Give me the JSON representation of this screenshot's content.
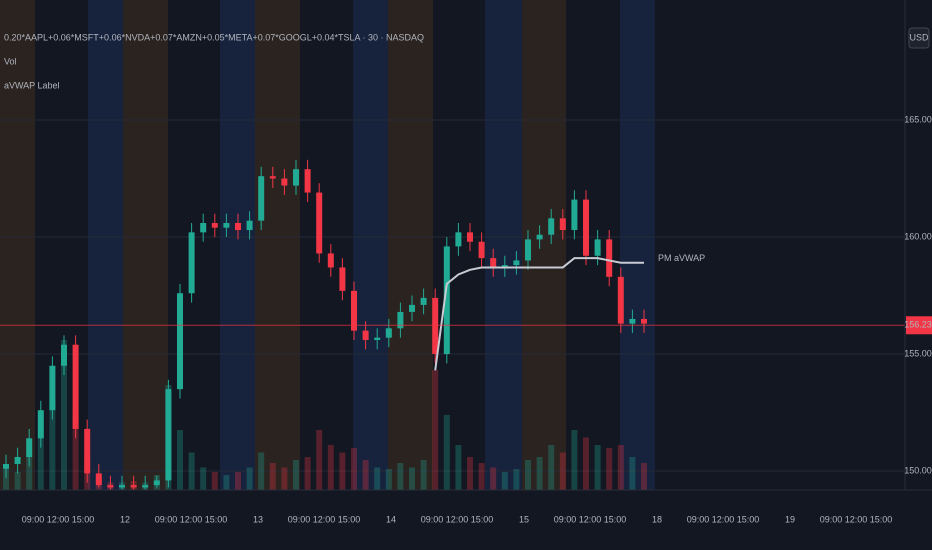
{
  "chart_data": {
    "type": "candlestick",
    "title": "0.20*AAPL+0.06*MSFT+0.06*NVDA+0.07*AMZN+0.05*META+0.07*GOOGL+0.04*TSLA · 30 · NASDAQ",
    "indicators": [
      "Vol",
      "aVWAP Label"
    ],
    "currency": "USD",
    "up_color": "#22ab94",
    "down_color": "#f23645",
    "open": [
      150.1,
      150.3,
      150.6,
      151.4,
      152.6,
      154.5,
      155.4,
      151.8,
      149.9,
      149.4,
      149.3,
      149.4,
      149.3,
      149.4,
      149.6,
      153.5,
      157.6,
      160.2,
      160.6,
      160.4,
      160.6,
      160.3,
      160.7,
      162.6,
      162.5,
      162.2,
      162.9,
      161.9,
      159.3,
      158.7,
      157.7,
      156.0,
      155.6,
      155.7,
      156.1,
      156.8,
      157.1,
      157.4,
      155.0,
      159.6,
      160.2,
      159.8,
      159.1,
      158.7,
      158.8,
      159.0,
      159.9,
      160.1,
      160.8,
      160.3,
      161.6,
      159.2,
      159.9,
      158.3,
      156.3,
      156.5
    ],
    "high": [
      150.7,
      151.0,
      151.8,
      153.0,
      154.9,
      155.8,
      155.8,
      152.2,
      150.3,
      149.8,
      149.8,
      149.8,
      149.8,
      149.8,
      153.9,
      158.0,
      160.6,
      161.0,
      161.0,
      161.0,
      161.0,
      161.1,
      163.0,
      163.0,
      162.9,
      163.3,
      163.3,
      162.3,
      159.7,
      159.1,
      158.1,
      156.4,
      156.1,
      156.5,
      157.2,
      157.5,
      157.8,
      157.8,
      160.0,
      160.6,
      160.6,
      160.2,
      159.5,
      159.2,
      159.4,
      160.3,
      160.5,
      161.2,
      161.2,
      162.0,
      162.0,
      160.3,
      160.3,
      158.7,
      156.9,
      156.9
    ],
    "low": [
      149.7,
      149.9,
      150.2,
      151.0,
      152.2,
      154.1,
      151.4,
      149.5,
      149.3,
      149.2,
      149.2,
      149.2,
      149.2,
      149.3,
      149.3,
      153.1,
      157.2,
      159.8,
      160.0,
      160.0,
      159.9,
      159.9,
      160.3,
      162.1,
      161.8,
      161.8,
      161.5,
      158.9,
      158.3,
      157.3,
      155.6,
      155.2,
      155.2,
      155.3,
      155.7,
      156.4,
      156.7,
      154.6,
      154.6,
      159.2,
      159.4,
      158.7,
      158.3,
      158.3,
      158.4,
      158.6,
      159.5,
      159.7,
      159.9,
      159.9,
      158.8,
      158.8,
      157.9,
      155.9,
      155.9,
      155.9
    ],
    "close": [
      150.3,
      150.6,
      151.4,
      152.6,
      154.5,
      155.4,
      151.8,
      149.9,
      149.4,
      149.3,
      149.4,
      149.3,
      149.4,
      149.6,
      153.5,
      157.6,
      160.2,
      160.6,
      160.4,
      160.6,
      160.3,
      160.7,
      162.6,
      162.5,
      162.2,
      162.9,
      161.9,
      159.3,
      158.7,
      157.7,
      156.0,
      155.6,
      155.7,
      156.1,
      156.8,
      157.1,
      157.4,
      155.0,
      159.6,
      160.2,
      159.8,
      159.1,
      158.7,
      158.8,
      159.0,
      159.9,
      160.1,
      160.8,
      160.3,
      161.6,
      159.2,
      159.9,
      158.3,
      156.3,
      156.5,
      156.3
    ],
    "volume": [
      15,
      12,
      25,
      35,
      60,
      100,
      50,
      20,
      8,
      5,
      5,
      6,
      5,
      10,
      70,
      40,
      25,
      15,
      12,
      10,
      12,
      15,
      25,
      18,
      15,
      20,
      22,
      40,
      30,
      25,
      28,
      20,
      15,
      14,
      18,
      15,
      20,
      80,
      50,
      30,
      22,
      18,
      15,
      12,
      14,
      20,
      22,
      30,
      25,
      40,
      35,
      30,
      28,
      30,
      22,
      18
    ],
    "series": [
      {
        "name": "PM aVWAP",
        "color": "#c8cbd2",
        "values": [
          null,
          null,
          null,
          null,
          null,
          null,
          null,
          null,
          null,
          null,
          null,
          null,
          null,
          null,
          null,
          null,
          null,
          null,
          null,
          null,
          null,
          null,
          null,
          null,
          null,
          null,
          null,
          null,
          null,
          null,
          null,
          null,
          null,
          null,
          null,
          null,
          null,
          154.3,
          158.0,
          158.4,
          158.6,
          158.7,
          158.7,
          158.7,
          158.7,
          158.7,
          158.7,
          158.7,
          158.7,
          159.1,
          159.1,
          159.1,
          159.0,
          158.9,
          158.9,
          158.9
        ]
      }
    ],
    "last_price": 156.23,
    "ylim": [
      149.19,
      170.13
    ],
    "yticks": [
      {
        "value": 150,
        "label": "150.00"
      },
      {
        "value": 155,
        "label": "155.00"
      },
      {
        "value": 160,
        "label": "160.00"
      },
      {
        "value": 165,
        "label": "165.00"
      }
    ],
    "xtick_labels": [
      "09:00",
      "12:00",
      "15:00",
      "12",
      "09:00",
      "12:00",
      "15:00",
      "13",
      "09:00",
      "12:00",
      "15:00",
      "14",
      "09:00",
      "12:00",
      "15:00",
      "15",
      "09:00",
      "12:00",
      "15:00",
      "18",
      "09:00",
      "12:00",
      "15:00",
      "19",
      "09:00",
      "12:00",
      "15:00"
    ],
    "grid": true
  }
}
